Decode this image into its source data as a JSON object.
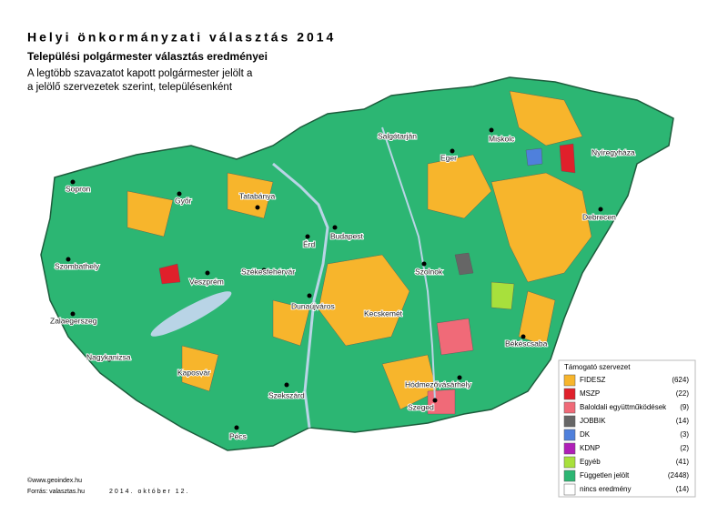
{
  "header": {
    "title": "Helyi önkormányzati választás 2014",
    "subtitle": "Települési polgármester választás eredményei",
    "description": [
      "A legtöbb szavazatot kapott polgármester jelölt a",
      "a jelölő szervezetek szerint, településenként"
    ]
  },
  "cities": [
    "Salgótarján",
    "Miskolc",
    "Eger",
    "Nyíregyháza",
    "Sopron",
    "Győr",
    "Tatabánya",
    "Budapest",
    "Érd",
    "Debrecen",
    "Szombathely",
    "Székesfehérvár",
    "Veszprém",
    "Szolnok",
    "Dunaújváros",
    "Zalaegerszeg",
    "Kecskemét",
    "Békéscsaba",
    "Nagykanizsa",
    "Kaposvár",
    "Hódmezővásárhely",
    "Szekszárd",
    "Szeged",
    "Pécs"
  ],
  "legend": {
    "title": "Támogató szervezet",
    "items": [
      {
        "label": "FIDESZ",
        "count": "(624)",
        "color": "#f7b52c"
      },
      {
        "label": "MSZP",
        "count": "(22)",
        "color": "#e0202b"
      },
      {
        "label": "Baloldali együttműködések",
        "count": "(9)",
        "color": "#f06a78"
      },
      {
        "label": "JOBBIK",
        "count": "(14)",
        "color": "#666666"
      },
      {
        "label": "DK",
        "count": "(3)",
        "color": "#4f80dc"
      },
      {
        "label": "KDNP",
        "count": "(2)",
        "color": "#b01fb8"
      },
      {
        "label": "Egyéb",
        "count": "(41)",
        "color": "#a8e03c"
      },
      {
        "label": "Független jelölt",
        "count": "(2448)",
        "color": "#2cb673"
      },
      {
        "label": "nincs eredmény",
        "count": "(14)",
        "color": "#ffffff"
      }
    ]
  },
  "footer": {
    "copyright": "©www.geoindex.hu",
    "source": "Forrás: valasztas.hu",
    "date": "2014. október 12."
  }
}
